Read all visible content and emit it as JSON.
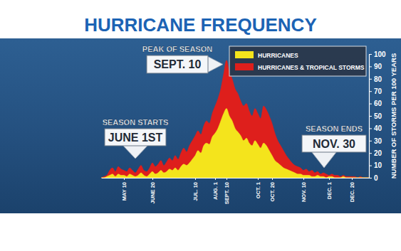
{
  "chart_data": {
    "type": "area",
    "title": "HURRICANE FREQUENCY",
    "y_label": "NUMBER OF STORMS PER 100 YEARS",
    "categories": [
      null,
      null,
      null,
      null,
      null,
      null,
      null,
      null,
      "MAY 10",
      null,
      null,
      null,
      null,
      null,
      null,
      null,
      null,
      null,
      "JUNE 20",
      null,
      null,
      null,
      null,
      null,
      null,
      null,
      null,
      null,
      null,
      null,
      null,
      null,
      null,
      "JUL. 10",
      null,
      null,
      null,
      null,
      null,
      null,
      "AUG. 1",
      null,
      null,
      null,
      "SEPT. 10",
      null,
      null,
      null,
      null,
      null,
      null,
      null,
      null,
      null,
      null,
      "OCT. 1",
      null,
      null,
      null,
      null,
      "OCT. 20",
      null,
      null,
      null,
      null,
      null,
      null,
      null,
      null,
      null,
      null,
      "NOV. 10",
      null,
      null,
      null,
      null,
      null,
      null,
      null,
      null,
      "DEC. 1",
      null,
      null,
      null,
      null,
      null,
      null,
      null,
      "DEC. 20",
      null,
      null,
      null,
      null,
      null,
      null
    ],
    "series": [
      {
        "name": "HURRICANES",
        "color": "#f4e41c",
        "values": [
          0,
          0,
          1,
          2,
          3,
          1,
          3,
          2,
          2,
          1,
          3,
          2,
          1,
          2,
          4,
          2,
          1,
          3,
          5,
          3,
          4,
          6,
          4,
          5,
          7,
          6,
          8,
          6,
          9,
          11,
          10,
          12,
          15,
          18,
          22,
          20,
          26,
          28,
          27,
          33,
          36,
          40,
          46,
          52,
          56,
          50,
          46,
          40,
          37,
          34,
          30,
          32,
          28,
          26,
          30,
          27,
          24,
          28,
          26,
          22,
          18,
          14,
          12,
          10,
          8,
          7,
          6,
          5,
          4,
          3,
          3,
          2,
          2,
          2,
          1,
          1,
          2,
          1,
          1,
          0,
          1,
          1,
          0,
          0,
          0,
          1,
          0,
          0,
          0,
          0,
          0,
          0,
          0,
          0,
          0
        ]
      },
      {
        "name": "HURRICANES & TROPICAL STORMS",
        "color": "#de1f1c",
        "values": [
          0,
          1,
          2,
          6,
          8,
          5,
          9,
          7,
          6,
          5,
          8,
          6,
          4,
          7,
          10,
          6,
          5,
          8,
          12,
          9,
          11,
          14,
          10,
          13,
          16,
          14,
          18,
          15,
          20,
          24,
          21,
          26,
          30,
          34,
          38,
          35,
          42,
          46,
          44,
          52,
          58,
          64,
          72,
          84,
          95,
          86,
          80,
          72,
          68,
          62,
          58,
          60,
          54,
          50,
          56,
          52,
          48,
          58,
          55,
          50,
          44,
          36,
          30,
          26,
          22,
          18,
          15,
          12,
          10,
          9,
          8,
          6,
          7,
          5,
          6,
          4,
          5,
          3,
          4,
          3,
          2,
          3,
          2,
          2,
          1,
          2,
          1,
          1,
          1,
          1,
          0,
          1,
          0,
          0,
          0
        ]
      }
    ],
    "stacked": false,
    "ylim": [
      0,
      100
    ],
    "yticks": [
      0,
      10,
      20,
      30,
      40,
      50,
      60,
      70,
      80,
      90,
      100
    ],
    "grid": false,
    "legend": "top-right",
    "annotations": [
      {
        "title": "PEAK OF SEASON",
        "text": "SEPT. 10"
      },
      {
        "title": "SEASON STARTS",
        "text": "JUNE 1ST"
      },
      {
        "title": "SEASON ENDS",
        "text": "NOV. 30"
      }
    ]
  }
}
